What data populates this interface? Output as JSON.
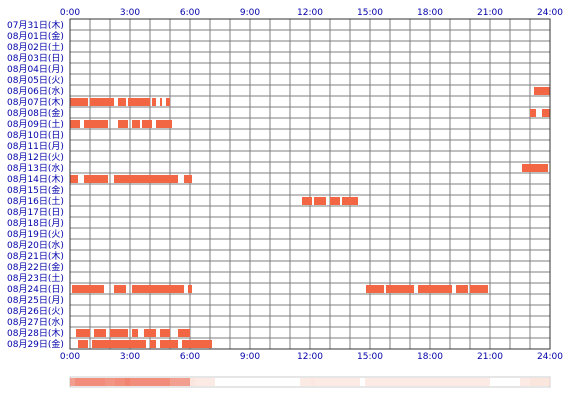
{
  "chart_data": {
    "type": "timeline",
    "x_unit": "hour of day",
    "xlim": [
      0,
      24
    ],
    "hour_ticks": [
      "0:00",
      "3:00",
      "6:00",
      "9:00",
      "12:00",
      "15:00",
      "18:00",
      "21:00",
      "24:00"
    ],
    "dates": [
      "07月31日(木)",
      "08月01日(金)",
      "08月02日(土)",
      "08月03日(日)",
      "08月04日(月)",
      "08月05日(火)",
      "08月06日(水)",
      "08月07日(木)",
      "08月08日(金)",
      "08月09日(土)",
      "08月10日(日)",
      "08月11日(月)",
      "08月12日(火)",
      "08月13日(水)",
      "08月14日(木)",
      "08月15日(金)",
      "08月16日(土)",
      "08月17日(日)",
      "08月18日(月)",
      "08月19日(火)",
      "08月20日(水)",
      "08月21日(木)",
      "08月22日(金)",
      "08月23日(土)",
      "08月24日(日)",
      "08月25日(月)",
      "08月26日(火)",
      "08月27日(水)",
      "08月28日(木)",
      "08月29日(金)"
    ],
    "activity": [
      {
        "date": "08月06日(水)",
        "segments": [
          [
            23.2,
            24.0
          ]
        ]
      },
      {
        "date": "08月07日(木)",
        "segments": [
          [
            0.0,
            0.9
          ],
          [
            1.0,
            2.2
          ],
          [
            2.4,
            2.8
          ],
          [
            2.9,
            4.0
          ],
          [
            4.1,
            4.3
          ],
          [
            4.5,
            4.6
          ],
          [
            4.8,
            5.0
          ]
        ]
      },
      {
        "date": "08月08日(金)",
        "segments": [
          [
            23.0,
            23.3
          ],
          [
            23.6,
            24.0
          ]
        ]
      },
      {
        "date": "08月09日(土)",
        "segments": [
          [
            0.0,
            0.5
          ],
          [
            0.7,
            1.9
          ],
          [
            2.4,
            2.9
          ],
          [
            3.1,
            3.5
          ],
          [
            3.6,
            4.1
          ],
          [
            4.3,
            5.1
          ]
        ]
      },
      {
        "date": "08月13日(水)",
        "segments": [
          [
            22.6,
            23.9
          ]
        ]
      },
      {
        "date": "08月14日(木)",
        "segments": [
          [
            0.0,
            0.4
          ],
          [
            0.7,
            1.9
          ],
          [
            2.2,
            5.4
          ],
          [
            5.7,
            6.1
          ]
        ]
      },
      {
        "date": "08月16日(土)",
        "segments": [
          [
            11.6,
            12.1
          ],
          [
            12.2,
            12.8
          ],
          [
            13.0,
            13.5
          ],
          [
            13.6,
            14.4
          ]
        ]
      },
      {
        "date": "08月24日(日)",
        "segments": [
          [
            0.1,
            1.7
          ],
          [
            2.2,
            2.8
          ],
          [
            3.1,
            5.7
          ],
          [
            5.9,
            6.1
          ],
          [
            14.8,
            15.7
          ],
          [
            15.8,
            17.2
          ],
          [
            17.4,
            19.1
          ],
          [
            19.3,
            19.9
          ],
          [
            20.0,
            20.9
          ]
        ]
      },
      {
        "date": "08月28日(木)",
        "segments": [
          [
            0.3,
            1.0
          ],
          [
            1.2,
            1.8
          ],
          [
            2.0,
            2.9
          ],
          [
            3.1,
            3.4
          ],
          [
            3.7,
            4.3
          ],
          [
            4.5,
            5.0
          ],
          [
            5.4,
            6.0
          ]
        ]
      },
      {
        "date": "08月29日(金)",
        "segments": [
          [
            0.4,
            0.9
          ],
          [
            1.1,
            3.8
          ],
          [
            4.0,
            4.3
          ],
          [
            4.5,
            5.4
          ],
          [
            5.6,
            7.1
          ]
        ]
      }
    ],
    "grid": true,
    "colors": {
      "bar": "#f26644",
      "grid": "#7f7f7f",
      "frame": "#333333",
      "labels": "#0000aa",
      "summary_dark": "#f08470",
      "summary_light": "#fadcd0",
      "summary_bg": "#ffffff"
    }
  }
}
